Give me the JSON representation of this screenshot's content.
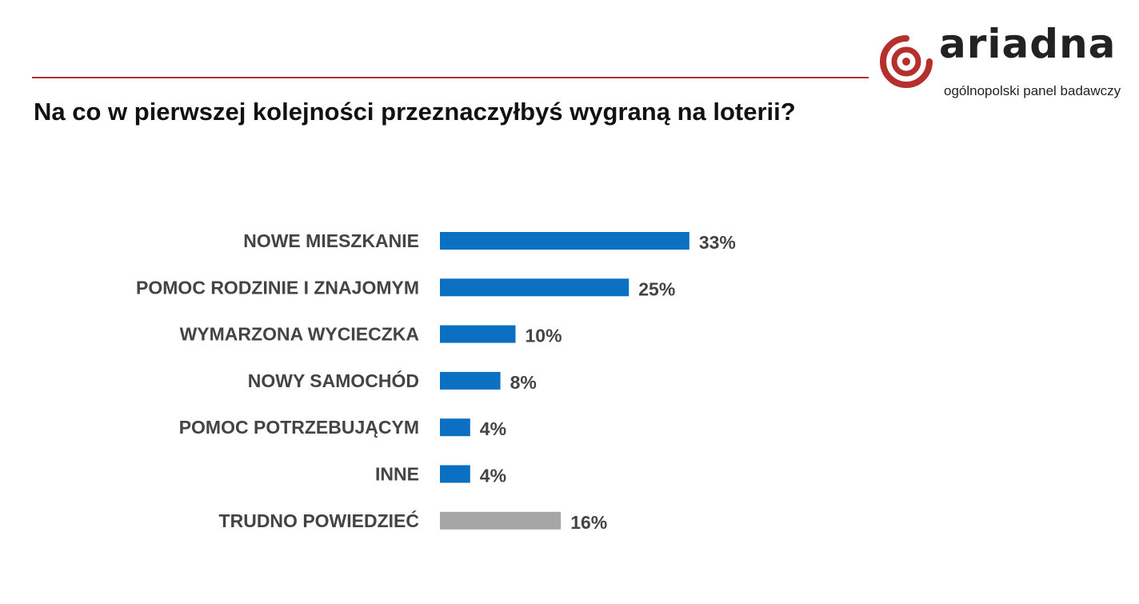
{
  "brand": {
    "name": "ariadna",
    "tagline": "ogólnopolski panel badawczy",
    "accent_color": "#b5302c"
  },
  "title": "Na co w pierwszej kolejności przeznaczyłbyś wygraną na loterii?",
  "chart_data": {
    "type": "bar",
    "orientation": "horizontal",
    "categories": [
      "NOWE MIESZKANIE",
      "POMOC RODZINIE I ZNAJOMYM",
      "WYMARZONA WYCIECZKA",
      "NOWY SAMOCHÓD",
      "POMOC POTRZEBUJĄCYM",
      "INNE",
      "TRUDNO POWIEDZIEĆ"
    ],
    "values": [
      33,
      25,
      10,
      8,
      4,
      4,
      16
    ],
    "value_labels": [
      "33%",
      "25%",
      "10%",
      "8%",
      "4%",
      "4%",
      "16%"
    ],
    "unit": "%",
    "colors": [
      "#0b6fc2",
      "#0b6fc2",
      "#0b6fc2",
      "#0b6fc2",
      "#0b6fc2",
      "#0b6fc2",
      "#a6a6a6"
    ],
    "grid": false,
    "legend": "none"
  }
}
